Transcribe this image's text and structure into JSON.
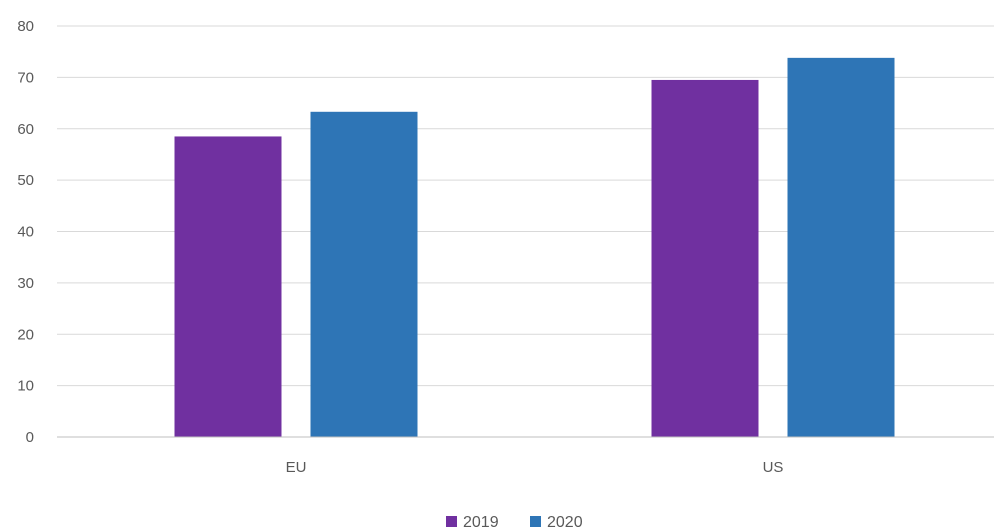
{
  "chart_data": {
    "type": "bar",
    "categories": [
      "EU",
      "US"
    ],
    "series": [
      {
        "name": "2019",
        "values": [
          58.5,
          69.5
        ],
        "color": "#7030a0"
      },
      {
        "name": "2020",
        "values": [
          63.3,
          73.8
        ],
        "color": "#2e75b6"
      }
    ],
    "title": "",
    "xlabel": "",
    "ylabel": "",
    "ylim": [
      0,
      80
    ],
    "yticks": [
      0,
      10,
      20,
      30,
      40,
      50,
      60,
      70,
      80
    ],
    "grid": true,
    "legend_position": "bottom",
    "colors": {
      "grid": "#d9d9d9",
      "axis": "#bfbfbf",
      "text": "#595959"
    }
  }
}
